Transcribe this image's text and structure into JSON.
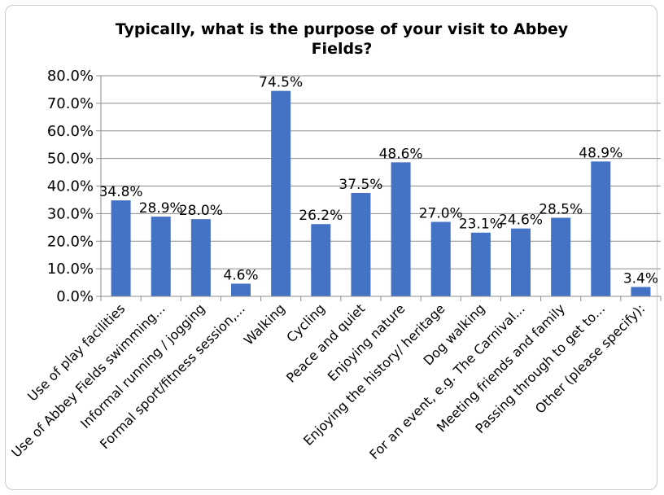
{
  "chart_data": {
    "type": "bar",
    "title": "Typically, what is the purpose of your visit to Abbey Fields?",
    "xlabel": "",
    "ylabel": "",
    "ylim": [
      0,
      80
    ],
    "ytick_labels": [
      "0.0%",
      "10.0%",
      "20.0%",
      "30.0%",
      "40.0%",
      "50.0%",
      "60.0%",
      "70.0%",
      "80.0%"
    ],
    "grid": true,
    "legend": "none",
    "bar_color": "#4472C4",
    "categories": [
      "Use of play facilities",
      "Use of Abbey Fields swimming...",
      "Informal running / jogging",
      "Formal sport/fitness session,...",
      "Walking",
      "Cycling",
      "Peace and quiet",
      "Enjoying nature",
      "Enjoying the history/ heritage",
      "Dog walking",
      "For an event, e.g. The Carnival...",
      "Meeting friends and family",
      "Passing through to get to...",
      "Other (please specify):"
    ],
    "values": [
      34.8,
      28.9,
      28.0,
      4.6,
      74.5,
      26.2,
      37.5,
      48.6,
      27.0,
      23.1,
      24.6,
      28.5,
      48.9,
      3.4
    ],
    "data_labels": [
      "34.8%",
      "28.9%",
      "28.0%",
      "4.6%",
      "74.5%",
      "26.2%",
      "37.5%",
      "48.6%",
      "27.0%",
      "23.1%",
      "24.6%",
      "28.5%",
      "48.9%",
      "3.4%"
    ]
  }
}
